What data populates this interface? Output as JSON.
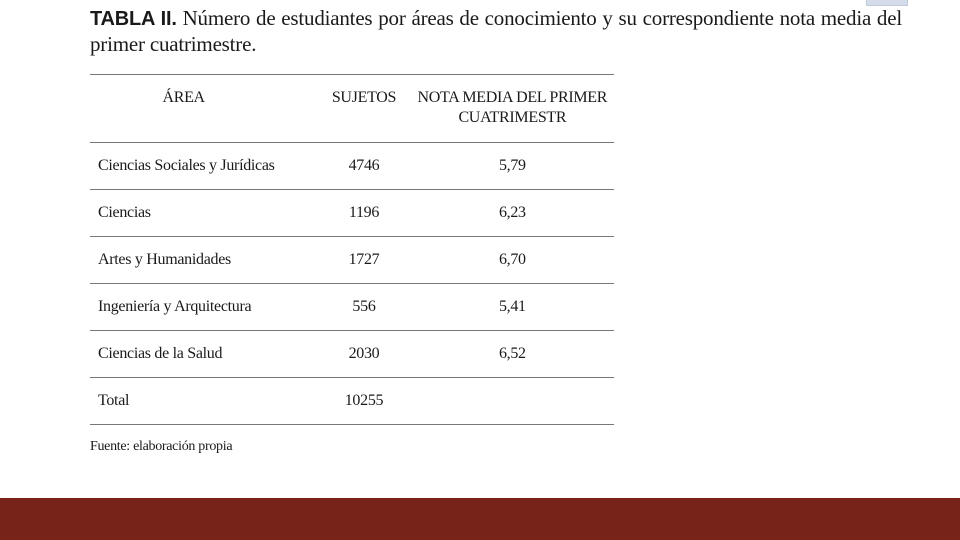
{
  "caption": {
    "label": "TABLA II.",
    "text": "Número de estudiantes por áreas de conocimiento y su correspondiente nota media del primer cuatrimestre."
  },
  "table": {
    "headers": {
      "area": "ÁREA",
      "sujetos": "SUJETOS",
      "nota_line1": "NOTA MEDIA DEL PRIMER",
      "nota_line2": "CUATRIMESTR"
    },
    "rows": [
      {
        "area": "Ciencias Sociales  y Jurídicas",
        "sujetos": "4746",
        "nota": "5,79"
      },
      {
        "area": "Ciencias",
        "sujetos": "1196",
        "nota": "6,23"
      },
      {
        "area": "Artes y Humanidades",
        "sujetos": "1727",
        "nota": "6,70"
      },
      {
        "area": "Ingeniería  y Arquitectura",
        "sujetos": "556",
        "nota": "5,41"
      },
      {
        "area": "Ciencias  de la Salud",
        "sujetos": "2030",
        "nota": "6,52"
      },
      {
        "area": "Total",
        "sujetos": "10255",
        "nota": ""
      }
    ]
  },
  "source": "Fuente: elaboración propia",
  "colors": {
    "footer_bar": "#772319",
    "table_rule": "#777777"
  }
}
